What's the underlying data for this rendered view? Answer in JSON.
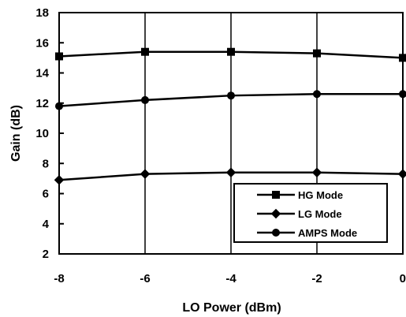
{
  "chart_data": {
    "type": "line",
    "title": "",
    "xlabel": "LO Power (dBm)",
    "ylabel": "Gain (dB)",
    "xlim": [
      -8,
      0
    ],
    "ylim": [
      2,
      18
    ],
    "xticks": [
      -8,
      -6,
      -4,
      -2,
      0
    ],
    "yticks": [
      2,
      4,
      6,
      8,
      10,
      12,
      14,
      16,
      18
    ],
    "grid": "vertical",
    "legend_position": "bottom-right",
    "x": [
      -8,
      -6,
      -4,
      -2,
      0
    ],
    "series": [
      {
        "name": "HG Mode",
        "marker": "square",
        "values": [
          15.1,
          15.4,
          15.4,
          15.3,
          15.0
        ]
      },
      {
        "name": "LG Mode",
        "marker": "diamond",
        "values": [
          6.9,
          7.3,
          7.4,
          7.4,
          7.3
        ]
      },
      {
        "name": "AMPS Mode",
        "marker": "circle",
        "values": [
          11.8,
          12.2,
          12.5,
          12.6,
          12.6
        ]
      }
    ],
    "line_color": "#000000"
  }
}
